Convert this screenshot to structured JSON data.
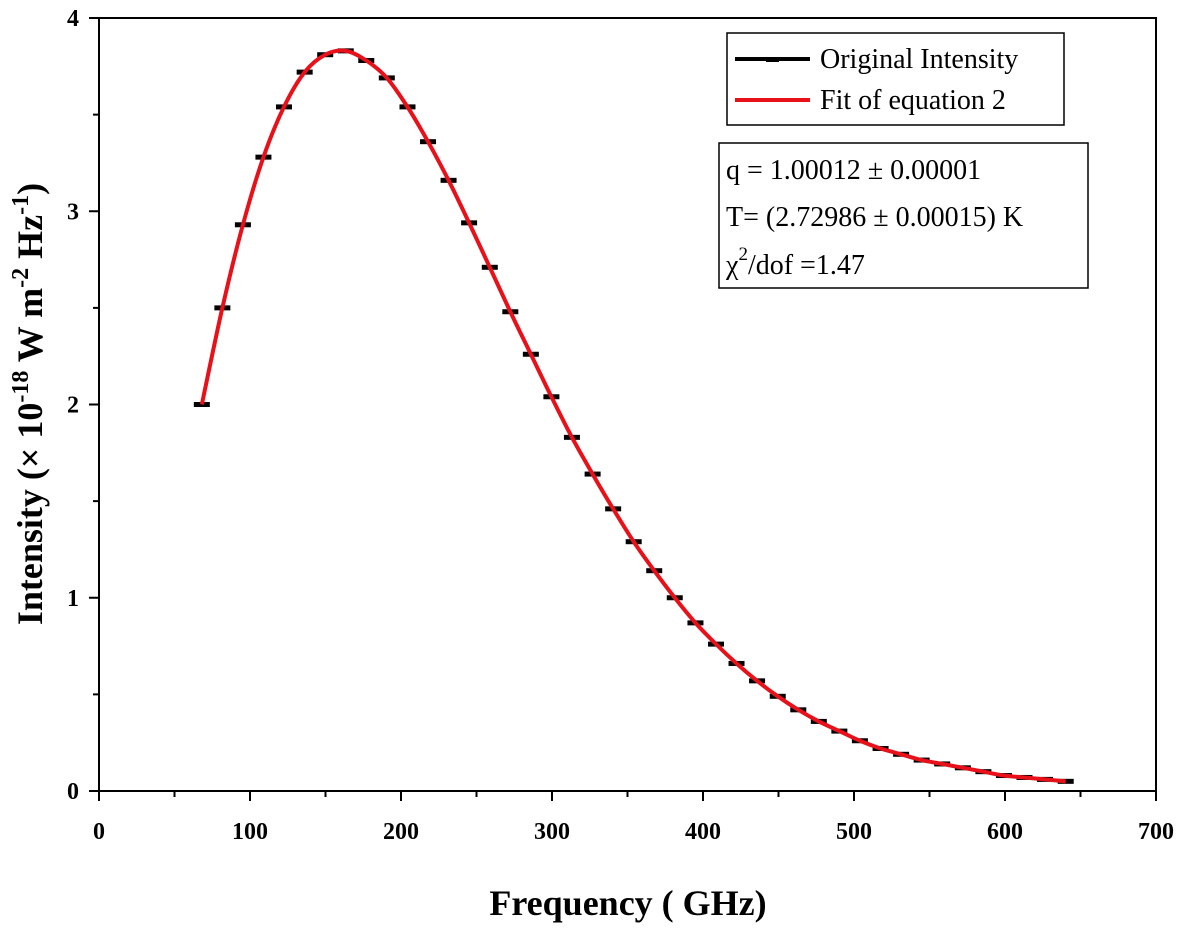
{
  "chart_data": {
    "type": "line",
    "xlabel": "Frequency ( GHz)",
    "ylabel": {
      "prefix": "Intensity (× 10",
      "exp1": "-18",
      "mid": " W m",
      "exp2": "-2",
      "mid2": " Hz",
      "exp3": "-1",
      "suffix": ")"
    },
    "xlim": [
      0,
      700
    ],
    "ylim": [
      0,
      4
    ],
    "x_ticks": [
      0,
      100,
      200,
      300,
      400,
      500,
      600,
      700
    ],
    "y_ticks": [
      0,
      1,
      2,
      3,
      4
    ],
    "x_tick_labels": [
      "0",
      "100",
      "200",
      "300",
      "400",
      "500",
      "600",
      "700"
    ],
    "y_tick_labels": [
      "0",
      "1",
      "2",
      "3",
      "4"
    ],
    "grid": false,
    "legend_position": "top-right",
    "series": [
      {
        "name": "Original Intensity",
        "style": "markers",
        "color": "#000000",
        "x": [
          68.1,
          81.7,
          95.3,
          108.9,
          122.5,
          136.2,
          149.8,
          163.4,
          177.0,
          190.6,
          204.3,
          217.9,
          231.5,
          245.1,
          258.8,
          272.4,
          286.0,
          299.6,
          313.2,
          326.9,
          340.5,
          354.1,
          367.7,
          381.3,
          395.0,
          408.6,
          422.2,
          435.8,
          449.5,
          463.1,
          476.7,
          490.3,
          503.9,
          517.6,
          531.2,
          544.8,
          558.4,
          572.1,
          585.7,
          599.3,
          612.9,
          626.5,
          640.2
        ],
        "y": [
          2.0,
          2.5,
          2.93,
          3.28,
          3.54,
          3.72,
          3.81,
          3.83,
          3.78,
          3.69,
          3.54,
          3.36,
          3.16,
          2.94,
          2.71,
          2.48,
          2.26,
          2.04,
          1.83,
          1.64,
          1.46,
          1.29,
          1.14,
          1.0,
          0.87,
          0.76,
          0.66,
          0.57,
          0.49,
          0.42,
          0.36,
          0.31,
          0.26,
          0.22,
          0.19,
          0.16,
          0.14,
          0.12,
          0.1,
          0.08,
          0.07,
          0.06,
          0.05
        ]
      },
      {
        "name": "Fit of equation 2",
        "style": "line",
        "color": "#e8111a",
        "x": [
          68.1,
          81.7,
          95.3,
          108.9,
          122.5,
          136.2,
          149.8,
          163.4,
          177.0,
          190.6,
          204.3,
          217.9,
          231.5,
          245.1,
          258.8,
          272.4,
          286.0,
          299.6,
          313.2,
          326.9,
          340.5,
          354.1,
          367.7,
          381.3,
          395.0,
          408.6,
          422.2,
          435.8,
          449.5,
          463.1,
          476.7,
          490.3,
          503.9,
          517.6,
          531.2,
          544.8,
          558.4,
          572.1,
          585.7,
          599.3,
          612.9,
          626.5,
          640.2
        ],
        "y": [
          2.0,
          2.5,
          2.93,
          3.28,
          3.54,
          3.72,
          3.81,
          3.83,
          3.78,
          3.69,
          3.54,
          3.36,
          3.16,
          2.94,
          2.71,
          2.48,
          2.26,
          2.04,
          1.83,
          1.64,
          1.46,
          1.29,
          1.14,
          1.0,
          0.87,
          0.76,
          0.66,
          0.57,
          0.49,
          0.42,
          0.36,
          0.31,
          0.26,
          0.22,
          0.19,
          0.16,
          0.14,
          0.12,
          0.1,
          0.08,
          0.07,
          0.06,
          0.05
        ]
      }
    ],
    "annotation": {
      "line1": "q = 1.00012 ± 0.00001",
      "line2": "T= (2.72986 ± 0.00015) K",
      "line3_chi": "χ",
      "line3_exp": "2",
      "line3_rest": "/dof =1.47"
    }
  }
}
